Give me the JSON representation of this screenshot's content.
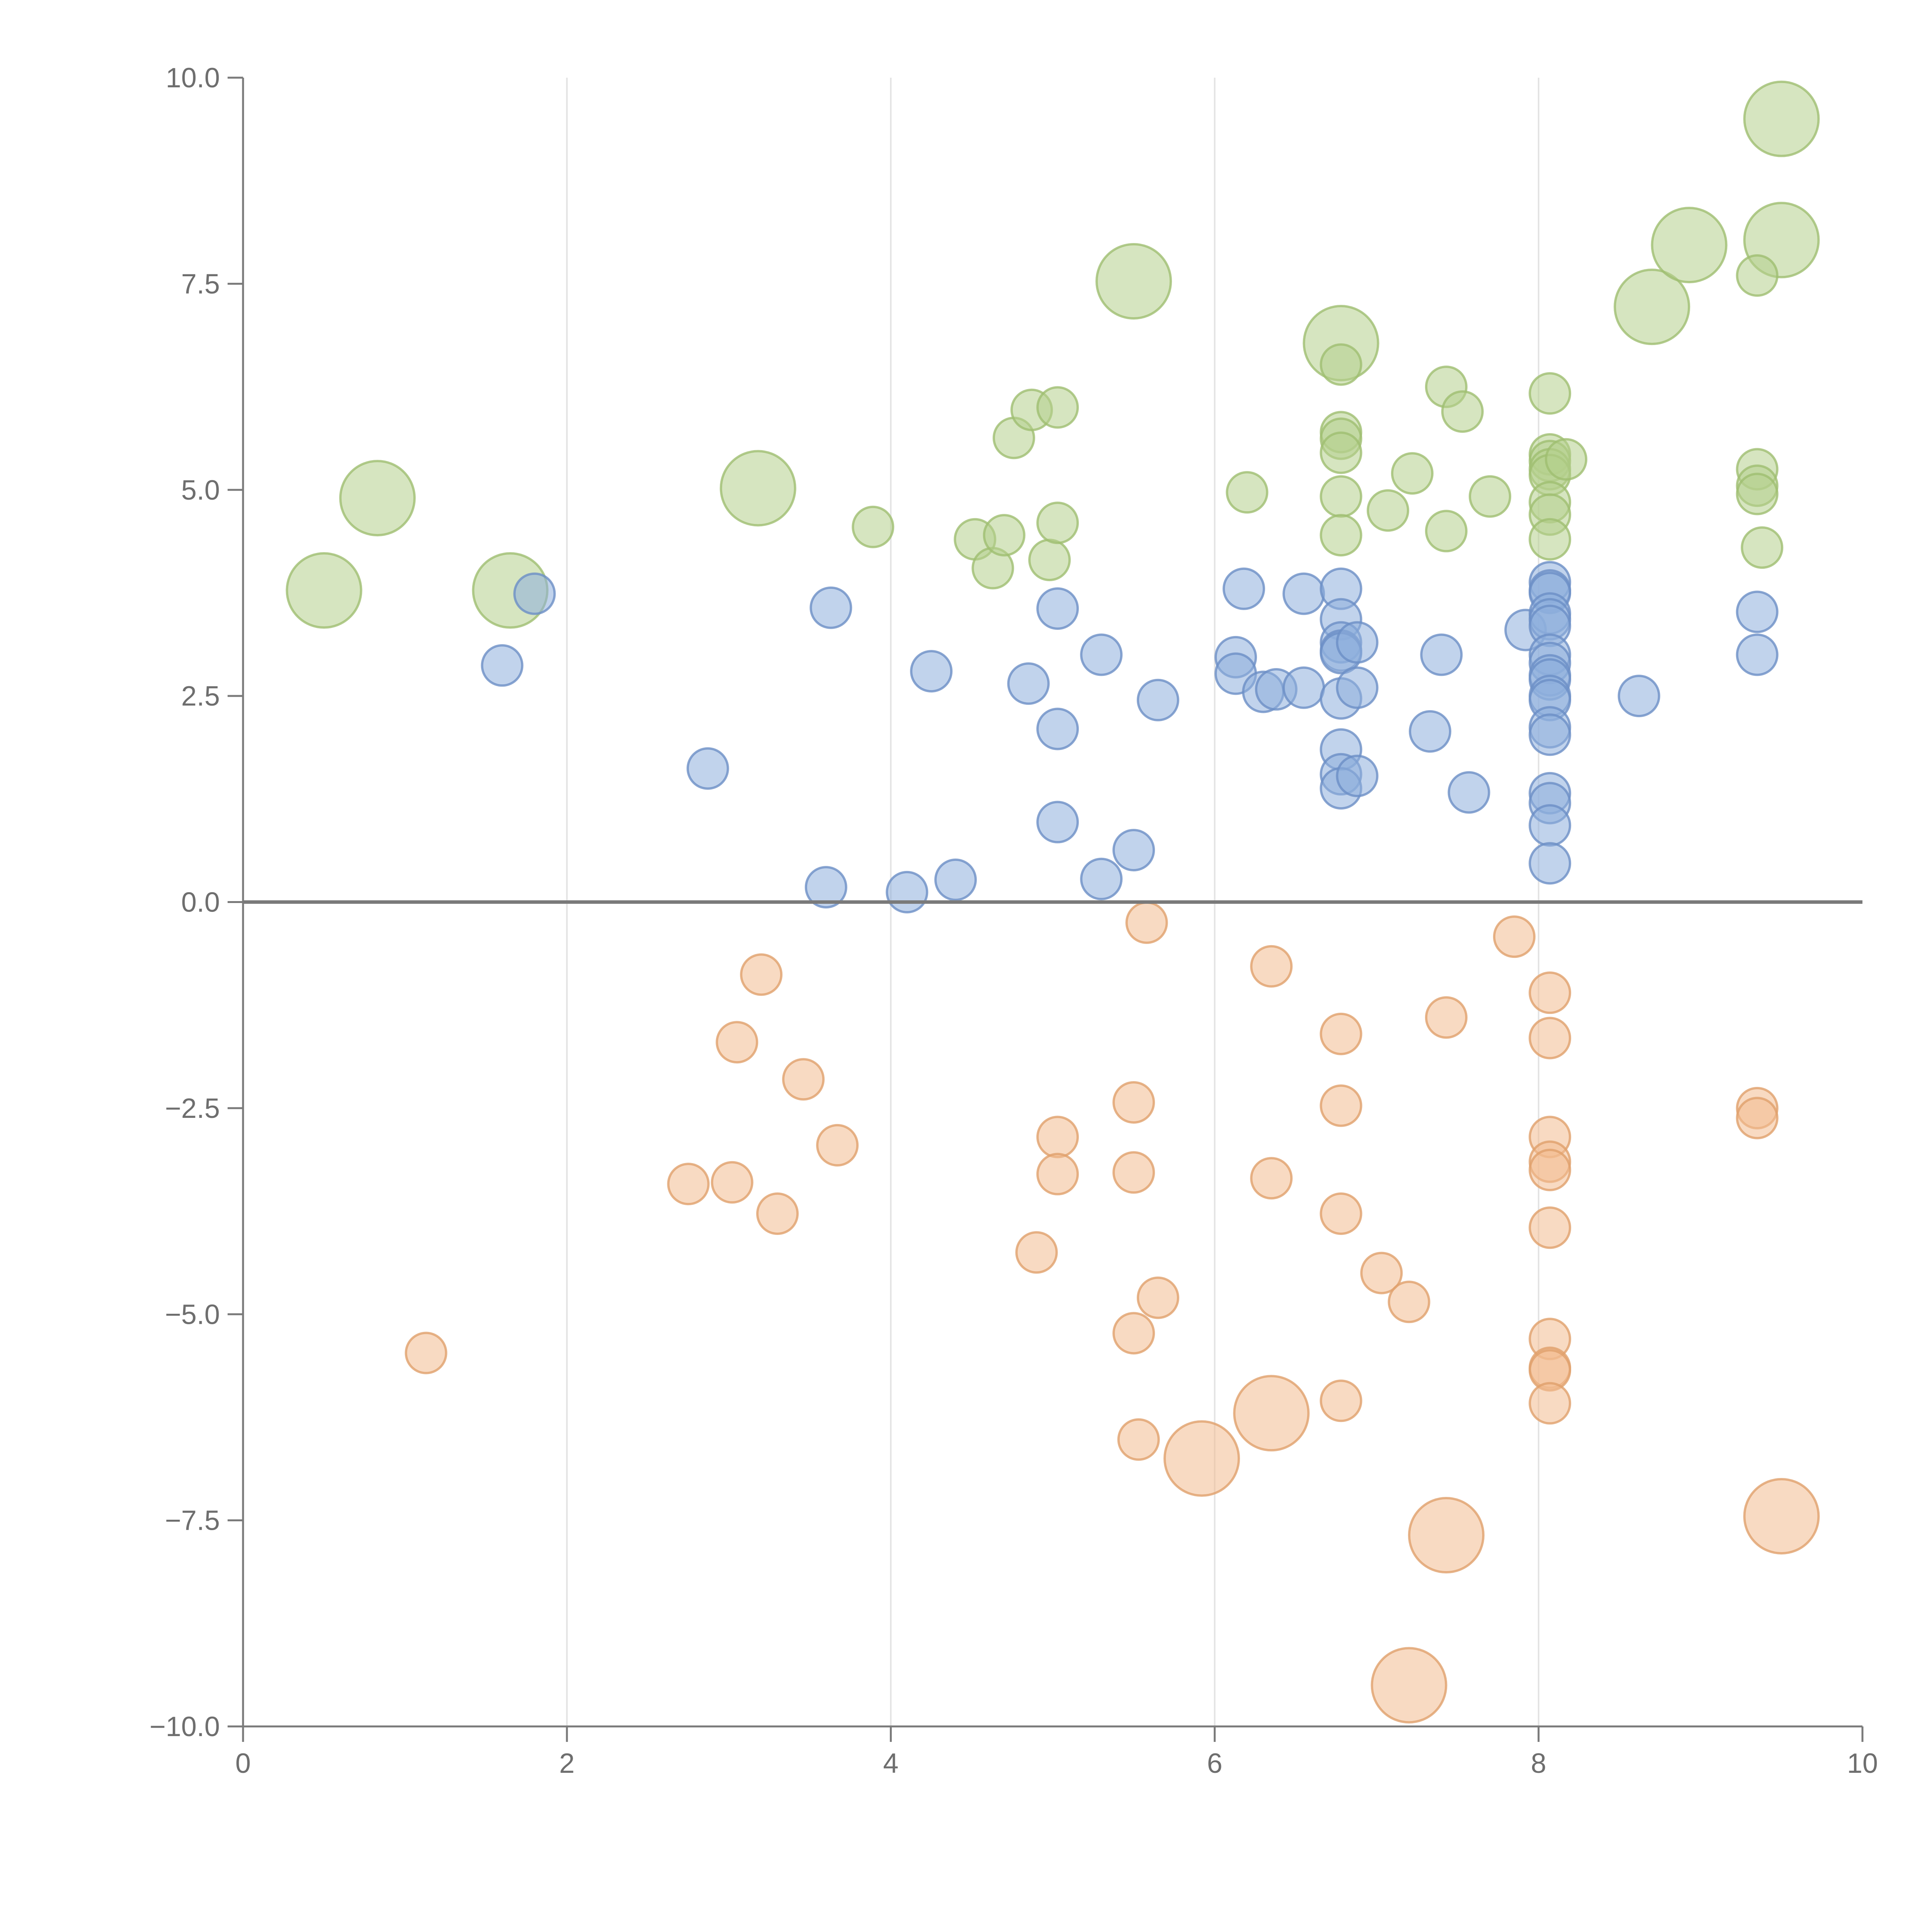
{
  "chart_data": {
    "type": "scatter",
    "title": "",
    "xlabel": "",
    "ylabel": "",
    "xlim": [
      0,
      10
    ],
    "ylim": [
      -10,
      10
    ],
    "x_ticks": [
      "0",
      "2",
      "4",
      "6",
      "8",
      "10"
    ],
    "y_ticks": [
      "−10.0",
      "−7.5",
      "−5.0",
      "−2.5",
      "0.0",
      "2.5",
      "5.0",
      "7.5",
      "10.0"
    ],
    "x_tick_values": [
      0,
      2,
      4,
      6,
      8,
      10
    ],
    "y_tick_values": [
      -10,
      -7.5,
      -5,
      -2.5,
      0,
      2.5,
      5,
      7.5,
      10
    ],
    "grid": {
      "vertical": true,
      "horizontal": false
    },
    "zero_line": true,
    "series": [
      {
        "color": "#b4d08c",
        "edge": "#9fbe70",
        "points": [
          [
            0.5,
            3.78,
            2
          ],
          [
            0.83,
            4.9,
            2
          ],
          [
            1.65,
            3.78,
            2
          ],
          [
            3.18,
            5.02,
            2
          ],
          [
            5.5,
            7.53,
            2
          ],
          [
            6.78,
            6.78,
            2
          ],
          [
            8.7,
            7.22,
            2
          ],
          [
            8.93,
            7.97,
            2
          ],
          [
            9.5,
            9.5,
            2
          ],
          [
            9.5,
            8.03,
            2
          ],
          [
            3.89,
            4.55,
            1
          ],
          [
            4.52,
            4.4,
            1
          ],
          [
            4.63,
            4.05,
            1
          ],
          [
            4.7,
            4.45,
            1
          ],
          [
            4.76,
            5.63,
            1
          ],
          [
            4.87,
            5.97,
            1
          ],
          [
            4.98,
            4.15,
            1
          ],
          [
            5.03,
            6.0,
            1
          ],
          [
            5.03,
            4.6,
            1
          ],
          [
            6.2,
            4.97,
            1
          ],
          [
            6.78,
            6.52,
            1
          ],
          [
            6.78,
            5.7,
            1
          ],
          [
            6.78,
            5.62,
            1
          ],
          [
            6.78,
            5.45,
            1
          ],
          [
            6.78,
            4.92,
            1
          ],
          [
            6.78,
            4.45,
            1
          ],
          [
            7.07,
            4.75,
            1
          ],
          [
            7.22,
            5.2,
            1
          ],
          [
            7.43,
            6.25,
            1
          ],
          [
            7.43,
            4.5,
            1
          ],
          [
            7.53,
            5.95,
            1
          ],
          [
            7.7,
            4.92,
            1
          ],
          [
            8.07,
            6.17,
            1
          ],
          [
            8.07,
            5.43,
            1
          ],
          [
            8.07,
            5.35,
            1
          ],
          [
            8.07,
            5.25,
            1
          ],
          [
            8.07,
            5.18,
            1
          ],
          [
            8.07,
            4.85,
            1
          ],
          [
            8.07,
            4.7,
            1
          ],
          [
            8.07,
            4.4,
            1
          ],
          [
            8.17,
            5.37,
            1
          ],
          [
            9.35,
            7.6,
            1
          ],
          [
            9.35,
            5.25,
            1
          ],
          [
            9.35,
            5.05,
            1
          ],
          [
            9.35,
            4.95,
            1
          ],
          [
            9.38,
            4.3,
            1
          ]
        ]
      },
      {
        "color": "#8eaedc",
        "edge": "#6c8fc6",
        "points": [
          [
            1.6,
            2.87,
            1
          ],
          [
            1.8,
            3.74,
            1
          ],
          [
            2.87,
            1.62,
            1
          ],
          [
            3.6,
            0.18,
            1
          ],
          [
            3.63,
            3.57,
            1
          ],
          [
            4.1,
            0.12,
            1
          ],
          [
            4.25,
            2.8,
            1
          ],
          [
            4.4,
            0.27,
            1
          ],
          [
            4.85,
            2.65,
            1
          ],
          [
            5.03,
            3.56,
            1
          ],
          [
            5.03,
            2.1,
            1
          ],
          [
            5.03,
            0.97,
            1
          ],
          [
            5.3,
            0.28,
            1
          ],
          [
            5.3,
            3.0,
            1
          ],
          [
            5.5,
            0.63,
            1
          ],
          [
            5.65,
            2.45,
            1
          ],
          [
            6.13,
            2.97,
            1
          ],
          [
            6.13,
            2.77,
            1
          ],
          [
            6.18,
            3.8,
            1
          ],
          [
            6.3,
            2.55,
            1
          ],
          [
            6.38,
            2.58,
            1
          ],
          [
            6.55,
            3.74,
            1
          ],
          [
            6.55,
            2.6,
            1
          ],
          [
            6.78,
            3.8,
            1
          ],
          [
            6.78,
            3.43,
            1
          ],
          [
            6.78,
            3.15,
            1
          ],
          [
            6.78,
            3.05,
            1
          ],
          [
            6.78,
            3.02,
            1
          ],
          [
            6.78,
            2.47,
            1
          ],
          [
            6.78,
            1.85,
            1
          ],
          [
            6.78,
            1.55,
            1
          ],
          [
            6.78,
            1.38,
            1
          ],
          [
            6.88,
            3.15,
            1
          ],
          [
            6.88,
            2.6,
            1
          ],
          [
            6.88,
            1.53,
            1
          ],
          [
            7.33,
            2.07,
            1
          ],
          [
            7.4,
            3.0,
            1
          ],
          [
            7.57,
            1.33,
            1
          ],
          [
            7.92,
            3.3,
            1
          ],
          [
            8.07,
            3.88,
            1
          ],
          [
            8.07,
            3.78,
            1
          ],
          [
            8.07,
            3.75,
            1
          ],
          [
            8.07,
            3.5,
            1
          ],
          [
            8.07,
            3.43,
            1
          ],
          [
            8.07,
            3.35,
            1
          ],
          [
            8.07,
            3.0,
            1
          ],
          [
            8.07,
            2.9,
            1
          ],
          [
            8.07,
            2.75,
            1
          ],
          [
            8.07,
            2.7,
            1
          ],
          [
            8.07,
            2.5,
            1
          ],
          [
            8.07,
            2.45,
            1
          ],
          [
            8.07,
            2.12,
            1
          ],
          [
            8.07,
            2.03,
            1
          ],
          [
            8.07,
            1.32,
            1
          ],
          [
            8.07,
            1.2,
            1
          ],
          [
            8.07,
            0.93,
            1
          ],
          [
            8.07,
            0.47,
            1
          ],
          [
            8.62,
            2.5,
            1
          ],
          [
            9.35,
            3.52,
            1
          ],
          [
            9.35,
            3.0,
            1
          ]
        ]
      },
      {
        "color": "#f2bb90",
        "edge": "#e0a06c",
        "points": [
          [
            1.13,
            -5.47,
            1
          ],
          [
            2.75,
            -3.42,
            1
          ],
          [
            3.02,
            -3.4,
            1
          ],
          [
            3.05,
            -1.7,
            1
          ],
          [
            3.2,
            -0.88,
            1
          ],
          [
            3.3,
            -3.78,
            1
          ],
          [
            3.46,
            -2.15,
            1
          ],
          [
            3.67,
            -2.95,
            1
          ],
          [
            4.9,
            -4.25,
            1
          ],
          [
            5.03,
            -2.85,
            1
          ],
          [
            5.03,
            -3.3,
            1
          ],
          [
            5.5,
            -2.43,
            1
          ],
          [
            5.5,
            -3.28,
            1
          ],
          [
            5.5,
            -5.23,
            1
          ],
          [
            5.53,
            -6.52,
            1
          ],
          [
            5.58,
            -0.25,
            1
          ],
          [
            5.65,
            -4.8,
            1
          ],
          [
            6.35,
            -0.78,
            1
          ],
          [
            6.35,
            -3.35,
            1
          ],
          [
            6.78,
            -1.6,
            1
          ],
          [
            6.78,
            -2.47,
            1
          ],
          [
            6.78,
            -3.78,
            1
          ],
          [
            6.78,
            -6.05,
            1
          ],
          [
            7.03,
            -4.5,
            1
          ],
          [
            7.2,
            -4.85,
            1
          ],
          [
            7.43,
            -1.4,
            1
          ],
          [
            7.85,
            -0.42,
            1
          ],
          [
            8.07,
            -1.1,
            1
          ],
          [
            8.07,
            -1.65,
            1
          ],
          [
            8.07,
            -2.85,
            1
          ],
          [
            8.07,
            -3.15,
            1
          ],
          [
            8.07,
            -3.25,
            1
          ],
          [
            8.07,
            -3.95,
            1
          ],
          [
            8.07,
            -5.3,
            1
          ],
          [
            8.07,
            -5.65,
            1
          ],
          [
            8.07,
            -5.68,
            1
          ],
          [
            8.07,
            -6.08,
            1
          ],
          [
            9.35,
            -2.5,
            1
          ],
          [
            9.35,
            -2.62,
            1
          ],
          [
            5.92,
            -6.75,
            2
          ],
          [
            6.35,
            -6.2,
            2
          ],
          [
            7.2,
            -9.5,
            2
          ],
          [
            7.43,
            -7.68,
            2
          ],
          [
            9.5,
            -7.45,
            2
          ]
        ]
      }
    ]
  }
}
